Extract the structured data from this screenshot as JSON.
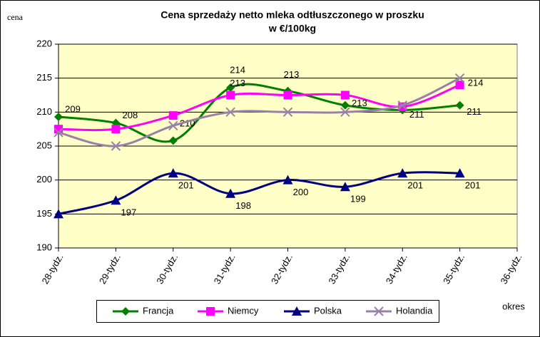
{
  "chart_data": {
    "type": "line",
    "title": [
      "Cena sprzedaży netto mleka  odtłuszczonego w proszku",
      "w €/100kg"
    ],
    "y_label": "cena",
    "x_label": "okres",
    "categories": [
      "28-tydz.",
      "29-tydz.",
      "30-tydz.",
      "31-tydz.",
      "32-tydz.",
      "33-tydz.",
      "34-tydz.",
      "35-tydz.",
      "36-tydz."
    ],
    "series": [
      {
        "name": "Francja",
        "color": "#008000",
        "marker": "diamond",
        "values": [
          209.3,
          208.4,
          205.8,
          213.6,
          213.1,
          211.0,
          210.3,
          211.0,
          null
        ],
        "value_labels": [
          "209",
          "208",
          null,
          "214",
          "213",
          null,
          null,
          "211",
          null
        ]
      },
      {
        "name": "Niemcy",
        "color": "#ff00ff",
        "marker": "square",
        "values": [
          207.5,
          207.5,
          209.5,
          212.5,
          212.5,
          212.5,
          210.8,
          214.0,
          null
        ],
        "value_labels": [
          null,
          null,
          "210",
          "213",
          null,
          "213",
          "211",
          "214",
          null
        ]
      },
      {
        "name": "Polska",
        "color": "#000080",
        "marker": "triangle",
        "values": [
          195,
          197,
          201,
          198,
          200,
          199,
          201,
          201,
          null
        ],
        "value_labels": [
          null,
          "197",
          "201",
          "198",
          "200",
          "199",
          "201",
          "201",
          null
        ]
      },
      {
        "name": "Holandia",
        "color": "#9980a8",
        "marker": "x",
        "values": [
          207,
          205,
          208,
          210,
          210,
          210,
          211,
          215,
          null
        ]
      }
    ],
    "ylim": [
      190,
      220
    ],
    "yticks": [
      190,
      195,
      200,
      205,
      210,
      215,
      220
    ],
    "grid": true,
    "background": "#ffffc8",
    "legend": "bottom"
  }
}
